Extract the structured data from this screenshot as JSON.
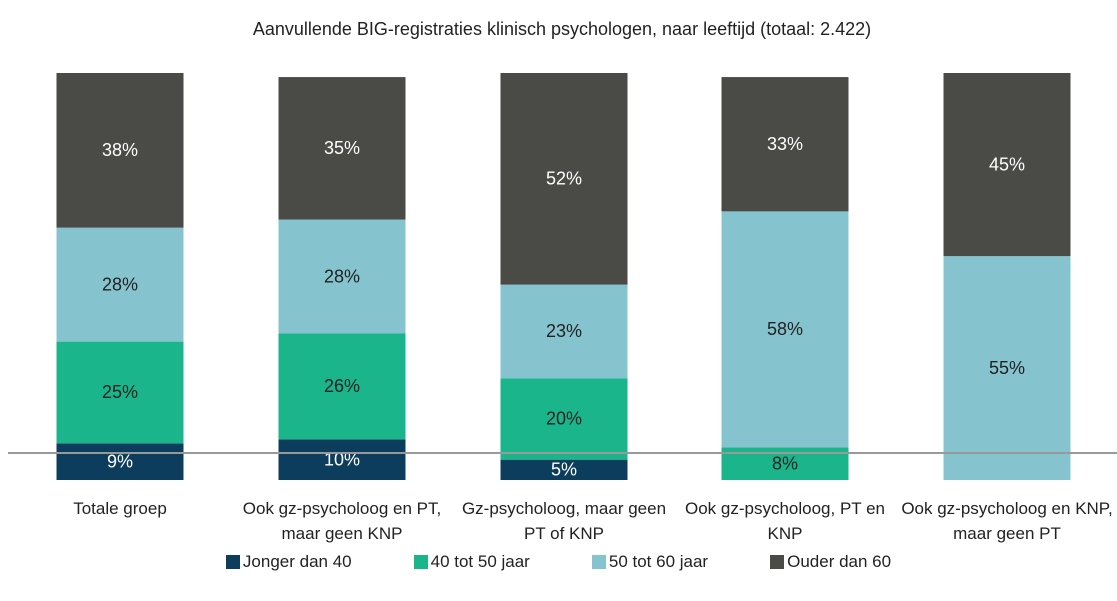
{
  "chart_data": {
    "type": "stacked_bar",
    "title": "Aanvullende BIG-registraties klinisch psychologen, naar leeftijd (totaal: 2.422)",
    "categories": [
      "Totale groep",
      "Ook gz-psycholoog en PT, maar geen KNP",
      "Gz-psycholoog, maar geen PT of KNP",
      "Ook gz-psycholoog, PT en KNP",
      "Ook gz-psycholoog en KNP, maar geen PT"
    ],
    "series": [
      {
        "name": "Jonger dan 40",
        "color": "#0d3d5c",
        "values": [
          9,
          10,
          5,
          0,
          0
        ],
        "value_labels": [
          "9%",
          "10%",
          "5%",
          null,
          null
        ]
      },
      {
        "name": "40 tot 50 jaar",
        "color": "#1ab58a",
        "values": [
          25,
          26,
          20,
          8,
          0
        ],
        "value_labels": [
          "25%",
          "26%",
          "20%",
          "8%",
          null
        ]
      },
      {
        "name": "50 tot 60 jaar",
        "color": "#85c4cf",
        "values": [
          28,
          28,
          23,
          58,
          55
        ],
        "value_labels": [
          "28%",
          "28%",
          "23%",
          "58%",
          "55%"
        ]
      },
      {
        "name": "Ouder dan 60",
        "color": "#4a4a46",
        "values": [
          38,
          35,
          52,
          33,
          45
        ],
        "value_labels": [
          "38%",
          "35%",
          "52%",
          "33%",
          "45%"
        ]
      }
    ],
    "ylim": [
      0,
      100
    ]
  }
}
